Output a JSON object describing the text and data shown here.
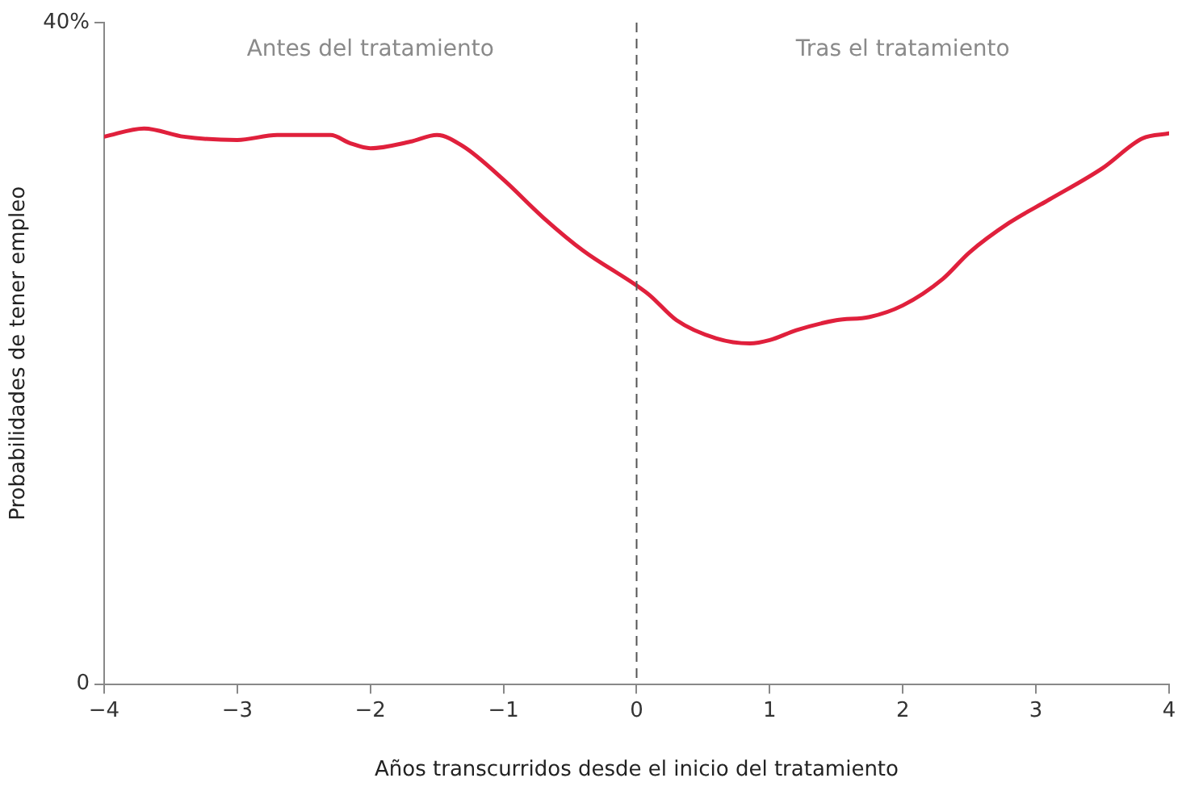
{
  "chart_data": {
    "type": "line",
    "xlabel": "Años transcurridos desde el inicio del tratamiento",
    "ylabel": "Probabilidades de tener empleo",
    "x": [
      -4,
      -3.7,
      -3.4,
      -3,
      -2.7,
      -2.3,
      -2.15,
      -2,
      -1.7,
      -1.5,
      -1.3,
      -1,
      -0.7,
      -0.4,
      0,
      0.1,
      0.3,
      0.6,
      0.85,
      1,
      1.2,
      1.5,
      1.75,
      2,
      2.3,
      2.5,
      2.8,
      3.1,
      3.5,
      3.8,
      4
    ],
    "series": [
      {
        "color": "#e0203c",
        "values": [
          33.1,
          33.6,
          33.1,
          32.9,
          33.2,
          33.2,
          32.7,
          32.4,
          32.8,
          33.2,
          32.5,
          30.5,
          28.2,
          26.2,
          24.1,
          23.5,
          22,
          20.9,
          20.6,
          20.8,
          21.4,
          22,
          22.2,
          22.9,
          24.5,
          26.1,
          27.9,
          29.3,
          31.2,
          33,
          33.3
        ]
      }
    ],
    "xlim": [
      -4,
      4
    ],
    "ylim": [
      0,
      40
    ],
    "xticks": [
      {
        "value": -4,
        "label": "−4"
      },
      {
        "value": -3,
        "label": "−3"
      },
      {
        "value": -2,
        "label": "−2"
      },
      {
        "value": -1,
        "label": "−1"
      },
      0,
      1,
      2,
      3,
      4
    ],
    "yticks": [
      0,
      {
        "value": 40,
        "label": "40%"
      }
    ],
    "ref_lines": [
      {
        "axis": "x",
        "value": 0,
        "line_style": "dashed",
        "color": "#555555"
      }
    ],
    "annotations": [
      "Antes del tratamiento",
      "Tras el tratamiento"
    ],
    "grid": false,
    "legend": false,
    "marker": "none",
    "line_style": "solid"
  }
}
